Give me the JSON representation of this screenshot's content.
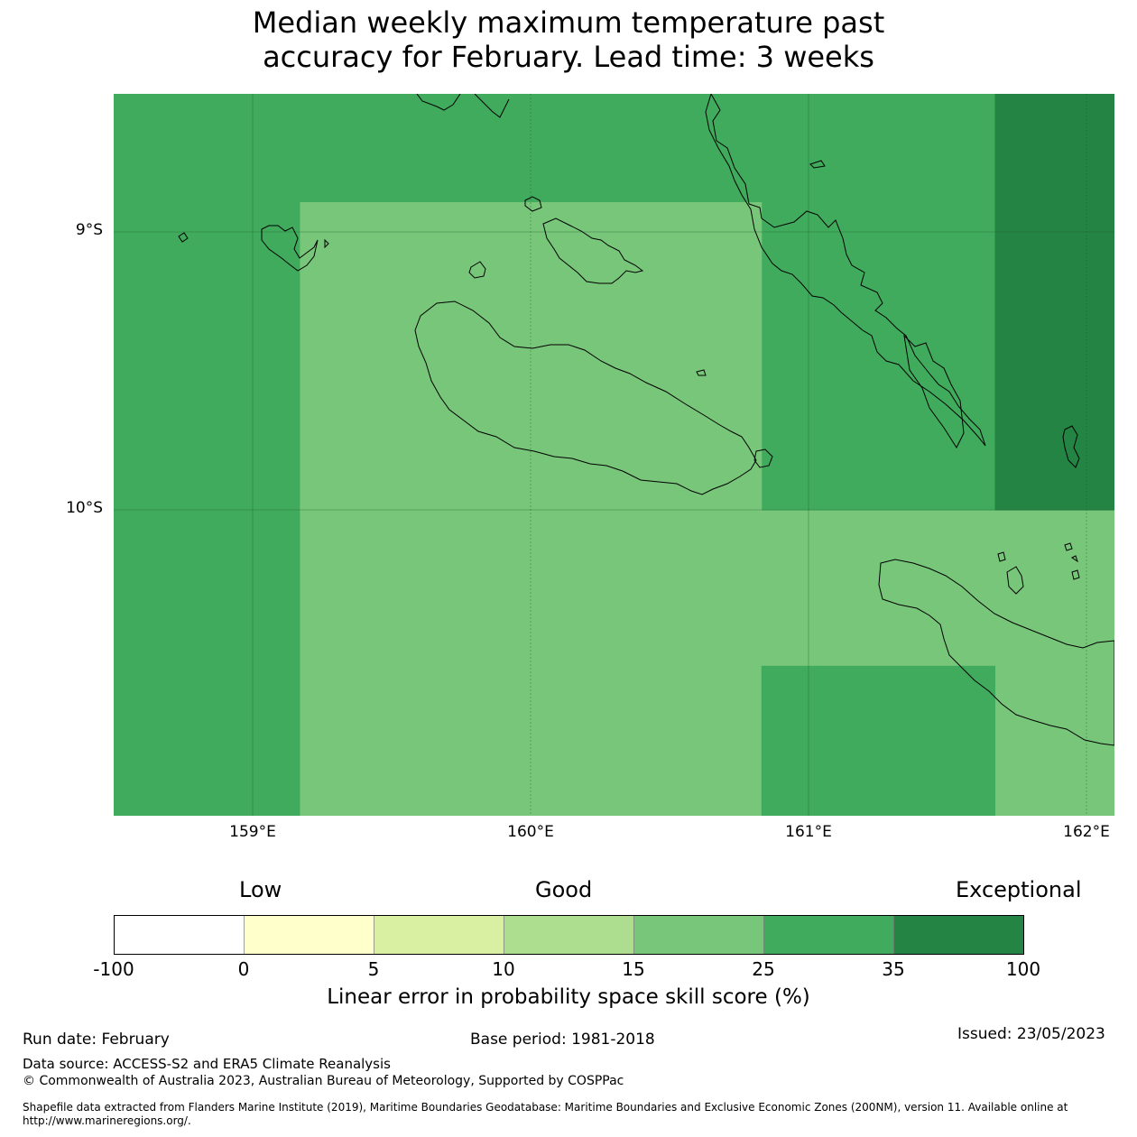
{
  "title": {
    "line1": "Median weekly maximum temperature past",
    "line2": "accuracy for February. Lead time: 3 weeks"
  },
  "map": {
    "lat_labels": [
      "9°S",
      "10°S"
    ],
    "lon_labels": [
      "159°E",
      "160°E",
      "161°E",
      "162°E"
    ],
    "cells": [
      {
        "lon_range": [
          158.5,
          159.17
        ],
        "lat_range": [
          -8.5,
          -11.1
        ],
        "bin": "25-35",
        "color": "#41ab5d"
      },
      {
        "lon_range": [
          159.17,
          160.83
        ],
        "lat_range": [
          -8.5,
          -8.89
        ],
        "bin": "25-35",
        "color": "#41ab5d"
      },
      {
        "lon_range": [
          160.83,
          161.67
        ],
        "lat_range": [
          -8.5,
          -10.0
        ],
        "bin": "25-35",
        "color": "#41ab5d"
      },
      {
        "lon_range": [
          161.67,
          162.1
        ],
        "lat_range": [
          -8.5,
          -10.0
        ],
        "bin": "35-100",
        "color": "#238443"
      },
      {
        "lon_range": [
          159.17,
          160.83
        ],
        "lat_range": [
          -8.89,
          -11.1
        ],
        "bin": "15-25",
        "color": "#78c679"
      },
      {
        "lon_range": [
          160.83,
          161.67
        ],
        "lat_range": [
          -10.0,
          -10.56
        ],
        "bin": "15-25",
        "color": "#78c679"
      },
      {
        "lon_range": [
          161.67,
          162.1
        ],
        "lat_range": [
          -10.0,
          -11.1
        ],
        "bin": "15-25",
        "color": "#78c679"
      },
      {
        "lon_range": [
          160.83,
          161.67
        ],
        "lat_range": [
          -10.56,
          -11.1
        ],
        "bin": "25-35",
        "color": "#41ab5d"
      }
    ]
  },
  "legend": {
    "categories": [
      "Low",
      "Good",
      "Exceptional"
    ],
    "ticks": [
      "-100",
      "0",
      "5",
      "10",
      "15",
      "25",
      "35",
      "100"
    ],
    "colors": [
      "#ffffff",
      "#ffffcc",
      "#d9f0a3",
      "#addd8e",
      "#78c679",
      "#41ab5d",
      "#238443"
    ],
    "title": "Linear error in probability space skill score (%)"
  },
  "footer": {
    "run_date": "Run date: February",
    "base_period": "Base period: 1981-2018",
    "issued": "Issued: 23/05/2023",
    "data_source": "Data source: ACCESS-S2 and ERA5 Climate Reanalysis",
    "copyright": "© Commonwealth of Australia 2023, Australian Bureau of Meteorology, Supported by COSPPac",
    "shapefile": "Shapefile data extracted from Flanders Marine Institute (2019), Maritime Boundaries Geodatabase: Maritime Boundaries and Exclusive Economic Zones (200NM), version 11. Available online at http://www.marineregions.org/."
  }
}
